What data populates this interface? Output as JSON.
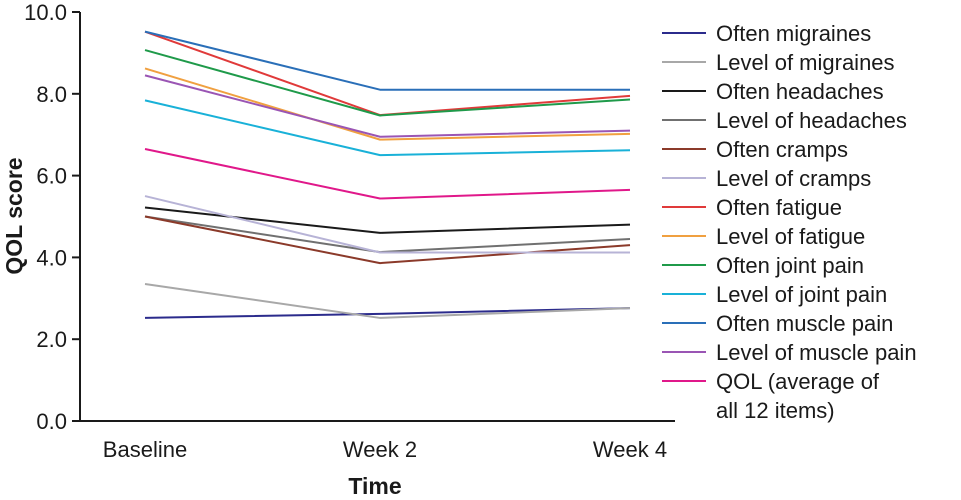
{
  "chart_data": {
    "type": "line",
    "title": "",
    "xlabel": "Time",
    "ylabel": "QOL score",
    "categories": [
      "Baseline",
      "Week 2",
      "Week 4"
    ],
    "ylim": [
      0,
      10
    ],
    "yticks": [
      "0.0",
      "2.0",
      "4.0",
      "6.0",
      "8.0",
      "10.0"
    ],
    "grid": false,
    "legend_position": "right",
    "series": [
      {
        "name": "Often migraines",
        "color": "#2b2b8c",
        "values": [
          2.52,
          2.62,
          2.76
        ]
      },
      {
        "name": "Level of migraines",
        "color": "#a8a8a8",
        "values": [
          3.35,
          2.52,
          2.76
        ]
      },
      {
        "name": "Often headaches",
        "color": "#1a1a1a",
        "values": [
          5.22,
          4.6,
          4.8
        ]
      },
      {
        "name": "Level of headaches",
        "color": "#707070",
        "values": [
          5.0,
          4.13,
          4.45
        ]
      },
      {
        "name": "Often cramps",
        "color": "#8b3a2a",
        "values": [
          5.0,
          3.86,
          4.3
        ]
      },
      {
        "name": "Level of cramps",
        "color": "#b7b3d6",
        "values": [
          5.5,
          4.12,
          4.12
        ]
      },
      {
        "name": "Often fatigue",
        "color": "#e03a3a",
        "values": [
          9.52,
          7.48,
          7.95
        ]
      },
      {
        "name": "Level of fatigue",
        "color": "#f0a040",
        "values": [
          8.62,
          6.88,
          7.02
        ]
      },
      {
        "name": "Often joint pain",
        "color": "#1f9a4a",
        "values": [
          9.07,
          7.47,
          7.86
        ]
      },
      {
        "name": "Level of joint pain",
        "color": "#19b1d8",
        "values": [
          7.84,
          6.5,
          6.62
        ]
      },
      {
        "name": "Often muscle pain",
        "color": "#2a6fb8",
        "values": [
          9.52,
          8.1,
          8.1
        ]
      },
      {
        "name": "Level of muscle pain",
        "color": "#9a55b4",
        "values": [
          8.45,
          6.95,
          7.1
        ]
      },
      {
        "name": "QOL (average of all 12 items)",
        "color": "#e0188a",
        "values": [
          6.65,
          5.44,
          5.65
        ]
      }
    ]
  },
  "legend": [
    {
      "lines": [
        "Often migraines"
      ]
    },
    {
      "lines": [
        "Level of migraines"
      ]
    },
    {
      "lines": [
        "Often headaches"
      ]
    },
    {
      "lines": [
        "Level of headaches"
      ]
    },
    {
      "lines": [
        "Often cramps"
      ]
    },
    {
      "lines": [
        "Level of cramps"
      ]
    },
    {
      "lines": [
        "Often fatigue"
      ]
    },
    {
      "lines": [
        "Level of fatigue"
      ]
    },
    {
      "lines": [
        "Often joint pain"
      ]
    },
    {
      "lines": [
        "Level of joint pain"
      ]
    },
    {
      "lines": [
        "Often muscle pain"
      ]
    },
    {
      "lines": [
        "Level of muscle pain"
      ]
    },
    {
      "lines": [
        "QOL (average of",
        "all 12 items)"
      ]
    }
  ]
}
